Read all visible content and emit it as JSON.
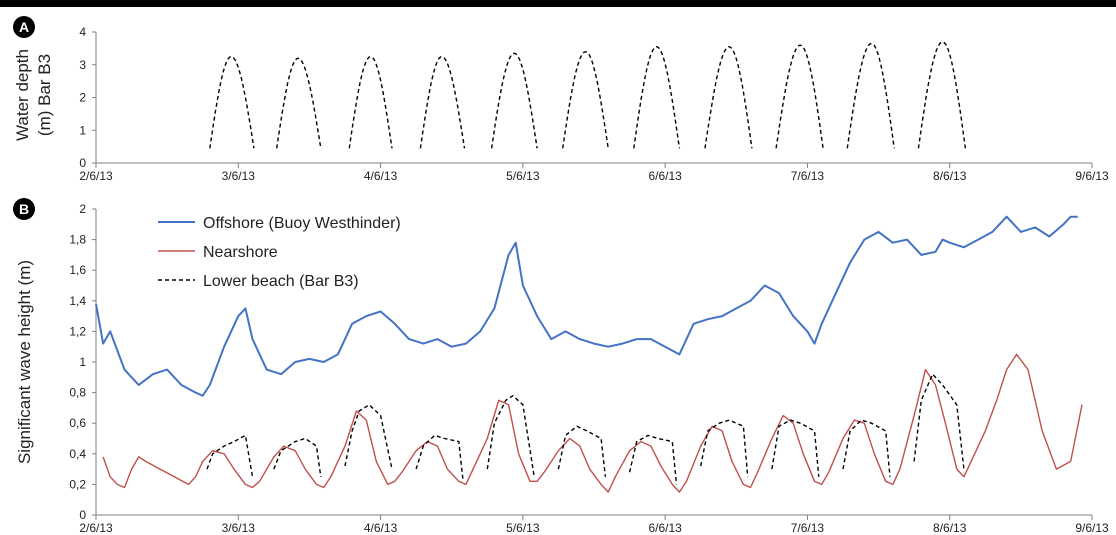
{
  "colors": {
    "offshore": "#4472C4",
    "nearshore": "#C0504D",
    "lower_beach": "#000000",
    "axis": "#7f7f7f"
  },
  "chart_data": [
    {
      "panel_label": "A",
      "type": "line",
      "ylabel_lines": [
        "Water depth",
        "(m) Bar B3"
      ],
      "ylim": [
        0,
        4
      ],
      "yticks": [
        "0",
        "1",
        "2",
        "3",
        "4"
      ],
      "xlim": [
        0,
        7
      ],
      "xticks": [
        "2/6/13",
        "3/6/13",
        "4/6/13",
        "5/6/13",
        "6/6/13",
        "7/6/13",
        "8/6/13",
        "9/6/13"
      ],
      "grid": false,
      "series": [
        {
          "style": "dashed",
          "tides": [
            {
              "start": 0.8,
              "peak": 0.95,
              "end": 1.11,
              "max": 3.25
            },
            {
              "start": 1.27,
              "peak": 1.42,
              "end": 1.58,
              "max": 3.2
            },
            {
              "start": 1.78,
              "peak": 1.93,
              "end": 2.08,
              "max": 3.25
            },
            {
              "start": 2.28,
              "peak": 2.43,
              "end": 2.59,
              "max": 3.25
            },
            {
              "start": 2.78,
              "peak": 2.94,
              "end": 3.1,
              "max": 3.35
            },
            {
              "start": 3.28,
              "peak": 3.44,
              "end": 3.6,
              "max": 3.4
            },
            {
              "start": 3.78,
              "peak": 3.94,
              "end": 4.1,
              "max": 3.55
            },
            {
              "start": 4.28,
              "peak": 4.45,
              "end": 4.61,
              "max": 3.55
            },
            {
              "start": 4.78,
              "peak": 4.95,
              "end": 5.11,
              "max": 3.6
            },
            {
              "start": 5.28,
              "peak": 5.45,
              "end": 5.61,
              "max": 3.65
            },
            {
              "start": 5.78,
              "peak": 5.95,
              "end": 6.11,
              "max": 3.7
            }
          ]
        }
      ]
    },
    {
      "panel_label": "B",
      "type": "line",
      "ylabel": "Significant wave height (m)",
      "ylim": [
        0,
        2
      ],
      "yticks": [
        "0",
        "0,2",
        "0,4",
        "0,6",
        "0,8",
        "1",
        "1,2",
        "1,4",
        "1,6",
        "1,8",
        "2"
      ],
      "xlim": [
        0,
        7
      ],
      "xticks": [
        "2/6/13",
        "3/6/13",
        "4/6/13",
        "5/6/13",
        "6/6/13",
        "7/6/13",
        "8/6/13",
        "9/6/13"
      ],
      "grid": false,
      "legend_position": "top-left",
      "series": [
        {
          "name": "Offshore (Buoy Westhinder)",
          "style": "solid",
          "x": [
            0.0,
            0.05,
            0.1,
            0.2,
            0.3,
            0.4,
            0.5,
            0.6,
            0.7,
            0.75,
            0.8,
            0.9,
            1.0,
            1.05,
            1.1,
            1.2,
            1.3,
            1.4,
            1.5,
            1.6,
            1.7,
            1.8,
            1.9,
            2.0,
            2.1,
            2.2,
            2.3,
            2.4,
            2.5,
            2.6,
            2.7,
            2.8,
            2.9,
            2.95,
            3.0,
            3.1,
            3.2,
            3.3,
            3.4,
            3.5,
            3.6,
            3.7,
            3.8,
            3.9,
            4.0,
            4.1,
            4.2,
            4.3,
            4.4,
            4.5,
            4.6,
            4.7,
            4.8,
            4.9,
            5.0,
            5.05,
            5.1,
            5.2,
            5.3,
            5.4,
            5.5,
            5.6,
            5.7,
            5.8,
            5.9,
            5.95,
            6.0,
            6.1,
            6.2,
            6.3,
            6.4,
            6.5,
            6.6,
            6.7,
            6.8,
            6.85,
            6.9
          ],
          "y": [
            1.38,
            1.12,
            1.2,
            0.95,
            0.85,
            0.92,
            0.95,
            0.85,
            0.8,
            0.78,
            0.85,
            1.1,
            1.3,
            1.35,
            1.15,
            0.95,
            0.92,
            1.0,
            1.02,
            1.0,
            1.05,
            1.25,
            1.3,
            1.33,
            1.25,
            1.15,
            1.12,
            1.15,
            1.1,
            1.12,
            1.2,
            1.35,
            1.7,
            1.78,
            1.5,
            1.3,
            1.15,
            1.2,
            1.15,
            1.12,
            1.1,
            1.12,
            1.15,
            1.15,
            1.1,
            1.05,
            1.25,
            1.28,
            1.3,
            1.35,
            1.4,
            1.5,
            1.45,
            1.3,
            1.2,
            1.12,
            1.25,
            1.45,
            1.65,
            1.8,
            1.85,
            1.78,
            1.8,
            1.7,
            1.72,
            1.8,
            1.78,
            1.75,
            1.8,
            1.85,
            1.95,
            1.85,
            1.88,
            1.82,
            1.9,
            1.95,
            1.95
          ]
        },
        {
          "name": "Nearshore",
          "style": "solid",
          "x": [
            0.05,
            0.1,
            0.15,
            0.2,
            0.25,
            0.3,
            0.35,
            0.45,
            0.55,
            0.65,
            0.7,
            0.75,
            0.82,
            0.9,
            0.97,
            1.05,
            1.1,
            1.15,
            1.25,
            1.32,
            1.4,
            1.47,
            1.55,
            1.6,
            1.65,
            1.75,
            1.83,
            1.9,
            1.97,
            2.05,
            2.1,
            2.15,
            2.25,
            2.33,
            2.4,
            2.47,
            2.55,
            2.6,
            2.65,
            2.75,
            2.83,
            2.9,
            2.97,
            3.05,
            3.1,
            3.15,
            3.25,
            3.33,
            3.4,
            3.47,
            3.55,
            3.6,
            3.65,
            3.75,
            3.83,
            3.9,
            3.97,
            4.05,
            4.1,
            4.15,
            4.25,
            4.33,
            4.4,
            4.47,
            4.55,
            4.6,
            4.65,
            4.75,
            4.83,
            4.9,
            4.97,
            5.05,
            5.1,
            5.15,
            5.25,
            5.33,
            5.4,
            5.47,
            5.55,
            5.6,
            5.65,
            5.75,
            5.83,
            5.9,
            5.97,
            6.05,
            6.1,
            6.15,
            6.25,
            6.33,
            6.4,
            6.47,
            6.55,
            6.65,
            6.75,
            6.85,
            6.93
          ],
          "y": [
            0.38,
            0.25,
            0.2,
            0.18,
            0.3,
            0.38,
            0.35,
            0.3,
            0.25,
            0.2,
            0.25,
            0.35,
            0.42,
            0.4,
            0.3,
            0.2,
            0.18,
            0.22,
            0.38,
            0.45,
            0.42,
            0.3,
            0.2,
            0.18,
            0.25,
            0.45,
            0.68,
            0.62,
            0.35,
            0.2,
            0.22,
            0.28,
            0.42,
            0.48,
            0.45,
            0.3,
            0.22,
            0.2,
            0.3,
            0.5,
            0.75,
            0.72,
            0.4,
            0.22,
            0.22,
            0.28,
            0.42,
            0.5,
            0.45,
            0.3,
            0.2,
            0.15,
            0.25,
            0.42,
            0.48,
            0.45,
            0.32,
            0.2,
            0.15,
            0.22,
            0.45,
            0.58,
            0.55,
            0.35,
            0.2,
            0.18,
            0.28,
            0.5,
            0.65,
            0.6,
            0.4,
            0.22,
            0.2,
            0.28,
            0.5,
            0.62,
            0.6,
            0.4,
            0.22,
            0.2,
            0.3,
            0.65,
            0.95,
            0.85,
            0.6,
            0.3,
            0.25,
            0.35,
            0.55,
            0.75,
            0.95,
            1.05,
            0.95,
            0.55,
            0.3,
            0.35,
            0.72
          ]
        },
        {
          "name": "Lower beach (Bar B3)",
          "style": "dashed",
          "bursts": [
            {
              "x": [
                0.78,
                0.82,
                0.9,
                0.97,
                1.05,
                1.1
              ],
              "y": [
                0.3,
                0.4,
                0.45,
                0.48,
                0.52,
                0.25
              ]
            },
            {
              "x": [
                1.25,
                1.3,
                1.4,
                1.47,
                1.55,
                1.58
              ],
              "y": [
                0.3,
                0.42,
                0.48,
                0.5,
                0.45,
                0.25
              ]
            },
            {
              "x": [
                1.75,
                1.8,
                1.85,
                1.92,
                2.0,
                2.08
              ],
              "y": [
                0.32,
                0.55,
                0.68,
                0.72,
                0.65,
                0.3
              ]
            },
            {
              "x": [
                2.25,
                2.3,
                2.38,
                2.45,
                2.55,
                2.58
              ],
              "y": [
                0.3,
                0.45,
                0.52,
                0.5,
                0.48,
                0.22
              ]
            },
            {
              "x": [
                2.75,
                2.8,
                2.88,
                2.93,
                3.0,
                3.08
              ],
              "y": [
                0.3,
                0.6,
                0.75,
                0.78,
                0.72,
                0.25
              ]
            },
            {
              "x": [
                3.25,
                3.3,
                3.38,
                3.45,
                3.55,
                3.58
              ],
              "y": [
                0.3,
                0.52,
                0.58,
                0.55,
                0.5,
                0.25
              ]
            },
            {
              "x": [
                3.75,
                3.8,
                3.88,
                3.95,
                4.05,
                4.08
              ],
              "y": [
                0.28,
                0.48,
                0.52,
                0.5,
                0.48,
                0.2
              ]
            },
            {
              "x": [
                4.25,
                4.3,
                4.38,
                4.45,
                4.55,
                4.58
              ],
              "y": [
                0.32,
                0.55,
                0.6,
                0.62,
                0.58,
                0.25
              ]
            },
            {
              "x": [
                4.75,
                4.8,
                4.88,
                4.95,
                5.05,
                5.08
              ],
              "y": [
                0.3,
                0.58,
                0.62,
                0.6,
                0.55,
                0.25
              ]
            },
            {
              "x": [
                5.25,
                5.3,
                5.38,
                5.45,
                5.55,
                5.58
              ],
              "y": [
                0.3,
                0.55,
                0.62,
                0.6,
                0.55,
                0.25
              ]
            },
            {
              "x": [
                5.75,
                5.8,
                5.88,
                5.95,
                6.05,
                6.1
              ],
              "y": [
                0.35,
                0.75,
                0.92,
                0.85,
                0.72,
                0.3
              ]
            }
          ]
        }
      ]
    }
  ]
}
